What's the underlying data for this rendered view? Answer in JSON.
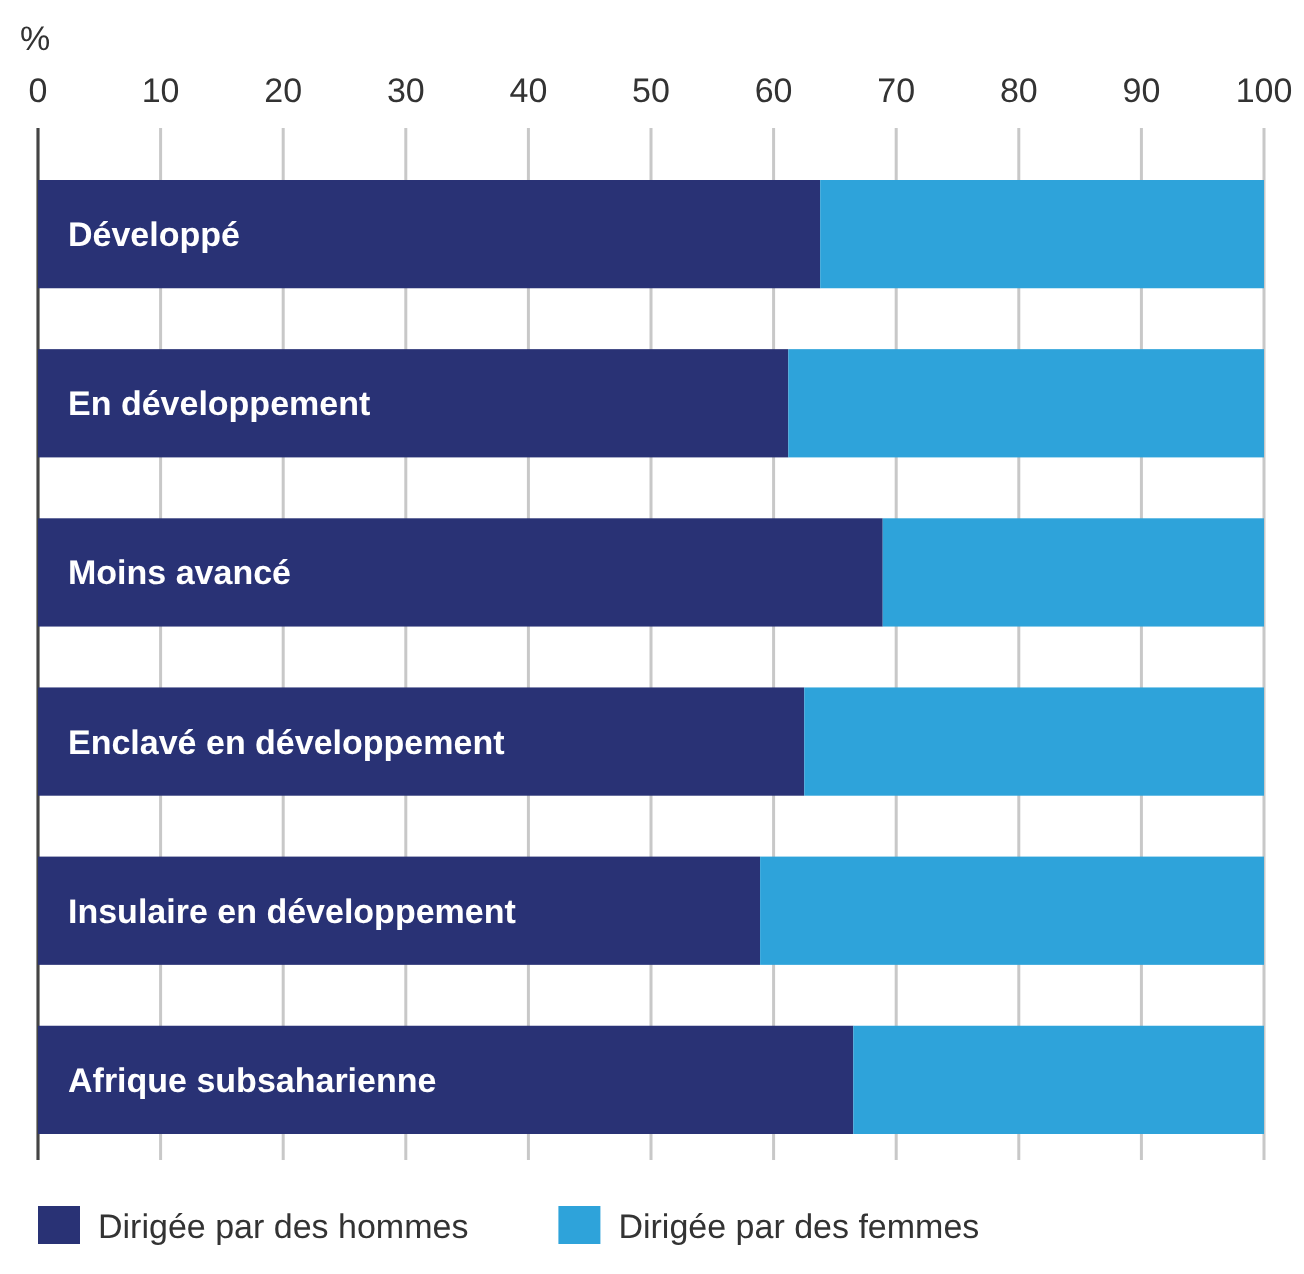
{
  "chart_data": {
    "type": "bar",
    "orientation": "horizontal",
    "stacked": true,
    "ylabel": "%",
    "categories": [
      "Développé",
      "En développement",
      "Moins avancé",
      "Enclavé en développement",
      "Insulaire en développement",
      "Afrique subsaharienne"
    ],
    "series": [
      {
        "name": "Dirigée par des hommes",
        "color": "#293275",
        "values": [
          63.8,
          61.2,
          68.9,
          62.5,
          58.9,
          66.5
        ]
      },
      {
        "name": "Dirigée par des femmes",
        "color": "#2ea3da",
        "values": [
          36.2,
          38.8,
          31.1,
          37.5,
          41.1,
          33.5
        ]
      }
    ],
    "xlim": [
      0,
      100
    ],
    "xticks": [
      0,
      10,
      20,
      30,
      40,
      50,
      60,
      70,
      80,
      90,
      100
    ],
    "grid": "x",
    "legend": "bottom"
  }
}
